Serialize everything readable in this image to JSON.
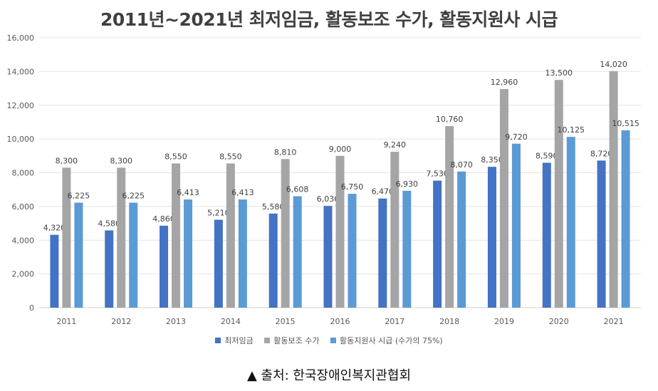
{
  "chart_data": {
    "type": "bar",
    "title": "2011년~2021년 최저임금, 활동보조 수가, 활동지원사 시급",
    "categories": [
      "2011",
      "2012",
      "2013",
      "2014",
      "2015",
      "2016",
      "2017",
      "2018",
      "2019",
      "2020",
      "2021"
    ],
    "series": [
      {
        "name": "최저임금",
        "color": "#4472c4",
        "values": [
          4320,
          4580,
          4860,
          5210,
          5580,
          6030,
          6470,
          7530,
          8350,
          8590,
          8720
        ],
        "labels": [
          "4,320",
          "4,580",
          "4,860",
          "5,210",
          "5,580",
          "6,030",
          "6,470",
          "7,530",
          "8,350",
          "8,590",
          "8,720"
        ]
      },
      {
        "name": "활동보조 수가",
        "color": "#a5a5a5",
        "values": [
          8300,
          8300,
          8550,
          8550,
          8810,
          9000,
          9240,
          10760,
          12960,
          13500,
          14020
        ],
        "labels": [
          "8,300",
          "8,300",
          "8,550",
          "8,550",
          "8,810",
          "9,000",
          "9,240",
          "10,760",
          "12,960",
          "13,500",
          "14,020"
        ]
      },
      {
        "name": "활동지원사 시급 (수가의 75%)",
        "color": "#5b9bd5",
        "values": [
          6225,
          6225,
          6413,
          6413,
          6608,
          6750,
          6930,
          8070,
          9720,
          10125,
          10515
        ],
        "labels": [
          "6,225",
          "6,225",
          "6,413",
          "6,413",
          "6,608",
          "6,750",
          "6,930",
          "8,070",
          "9,720",
          "10,125",
          "10,515"
        ]
      }
    ],
    "ylim": [
      0,
      16000
    ],
    "yticks": [
      0,
      2000,
      4000,
      6000,
      8000,
      10000,
      12000,
      14000,
      16000
    ],
    "ytick_labels": [
      "0",
      "2,000",
      "4,000",
      "6,000",
      "8,000",
      "10,000",
      "12,000",
      "14,000",
      "16,000"
    ],
    "grid": true,
    "legend_position": "bottom"
  },
  "source": "▲ 출처: 한국장애인복지관협회"
}
